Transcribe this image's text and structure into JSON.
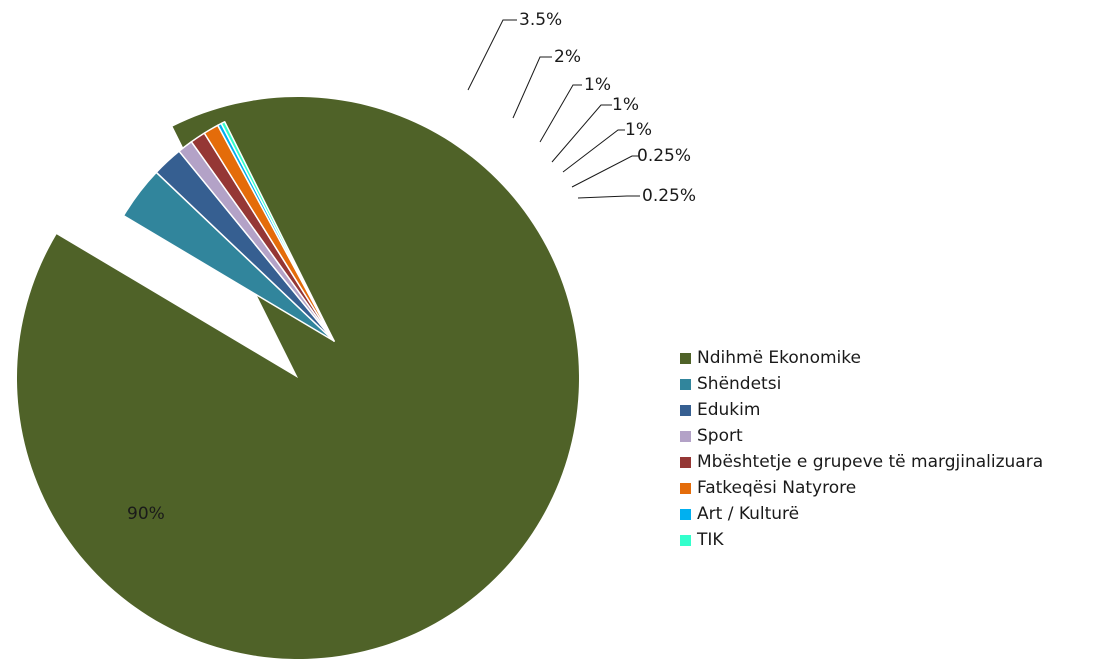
{
  "chart_data": {
    "type": "pie",
    "title": "",
    "legend_position": "right",
    "categories": [
      "Ndihmë Ekonomike",
      "Shëndetsi",
      "Edukim",
      "Sport",
      "Mbështetje e grupeve të margjinalizuara",
      "Fatkeqësi Natyrore",
      "Art / Kulturë",
      "TIK"
    ],
    "values": [
      90,
      3.5,
      2,
      1,
      1,
      1,
      0.25,
      0.25
    ],
    "labels": [
      "90%",
      "3.5%",
      "2%",
      "1%",
      "1%",
      "1%",
      "0.25%",
      "0.25%"
    ],
    "colors": [
      "#4f6228",
      "#31859c",
      "#365f91",
      "#b3a2c7",
      "#953735",
      "#e46c0a",
      "#00b0f0",
      "#33ffcc"
    ]
  }
}
